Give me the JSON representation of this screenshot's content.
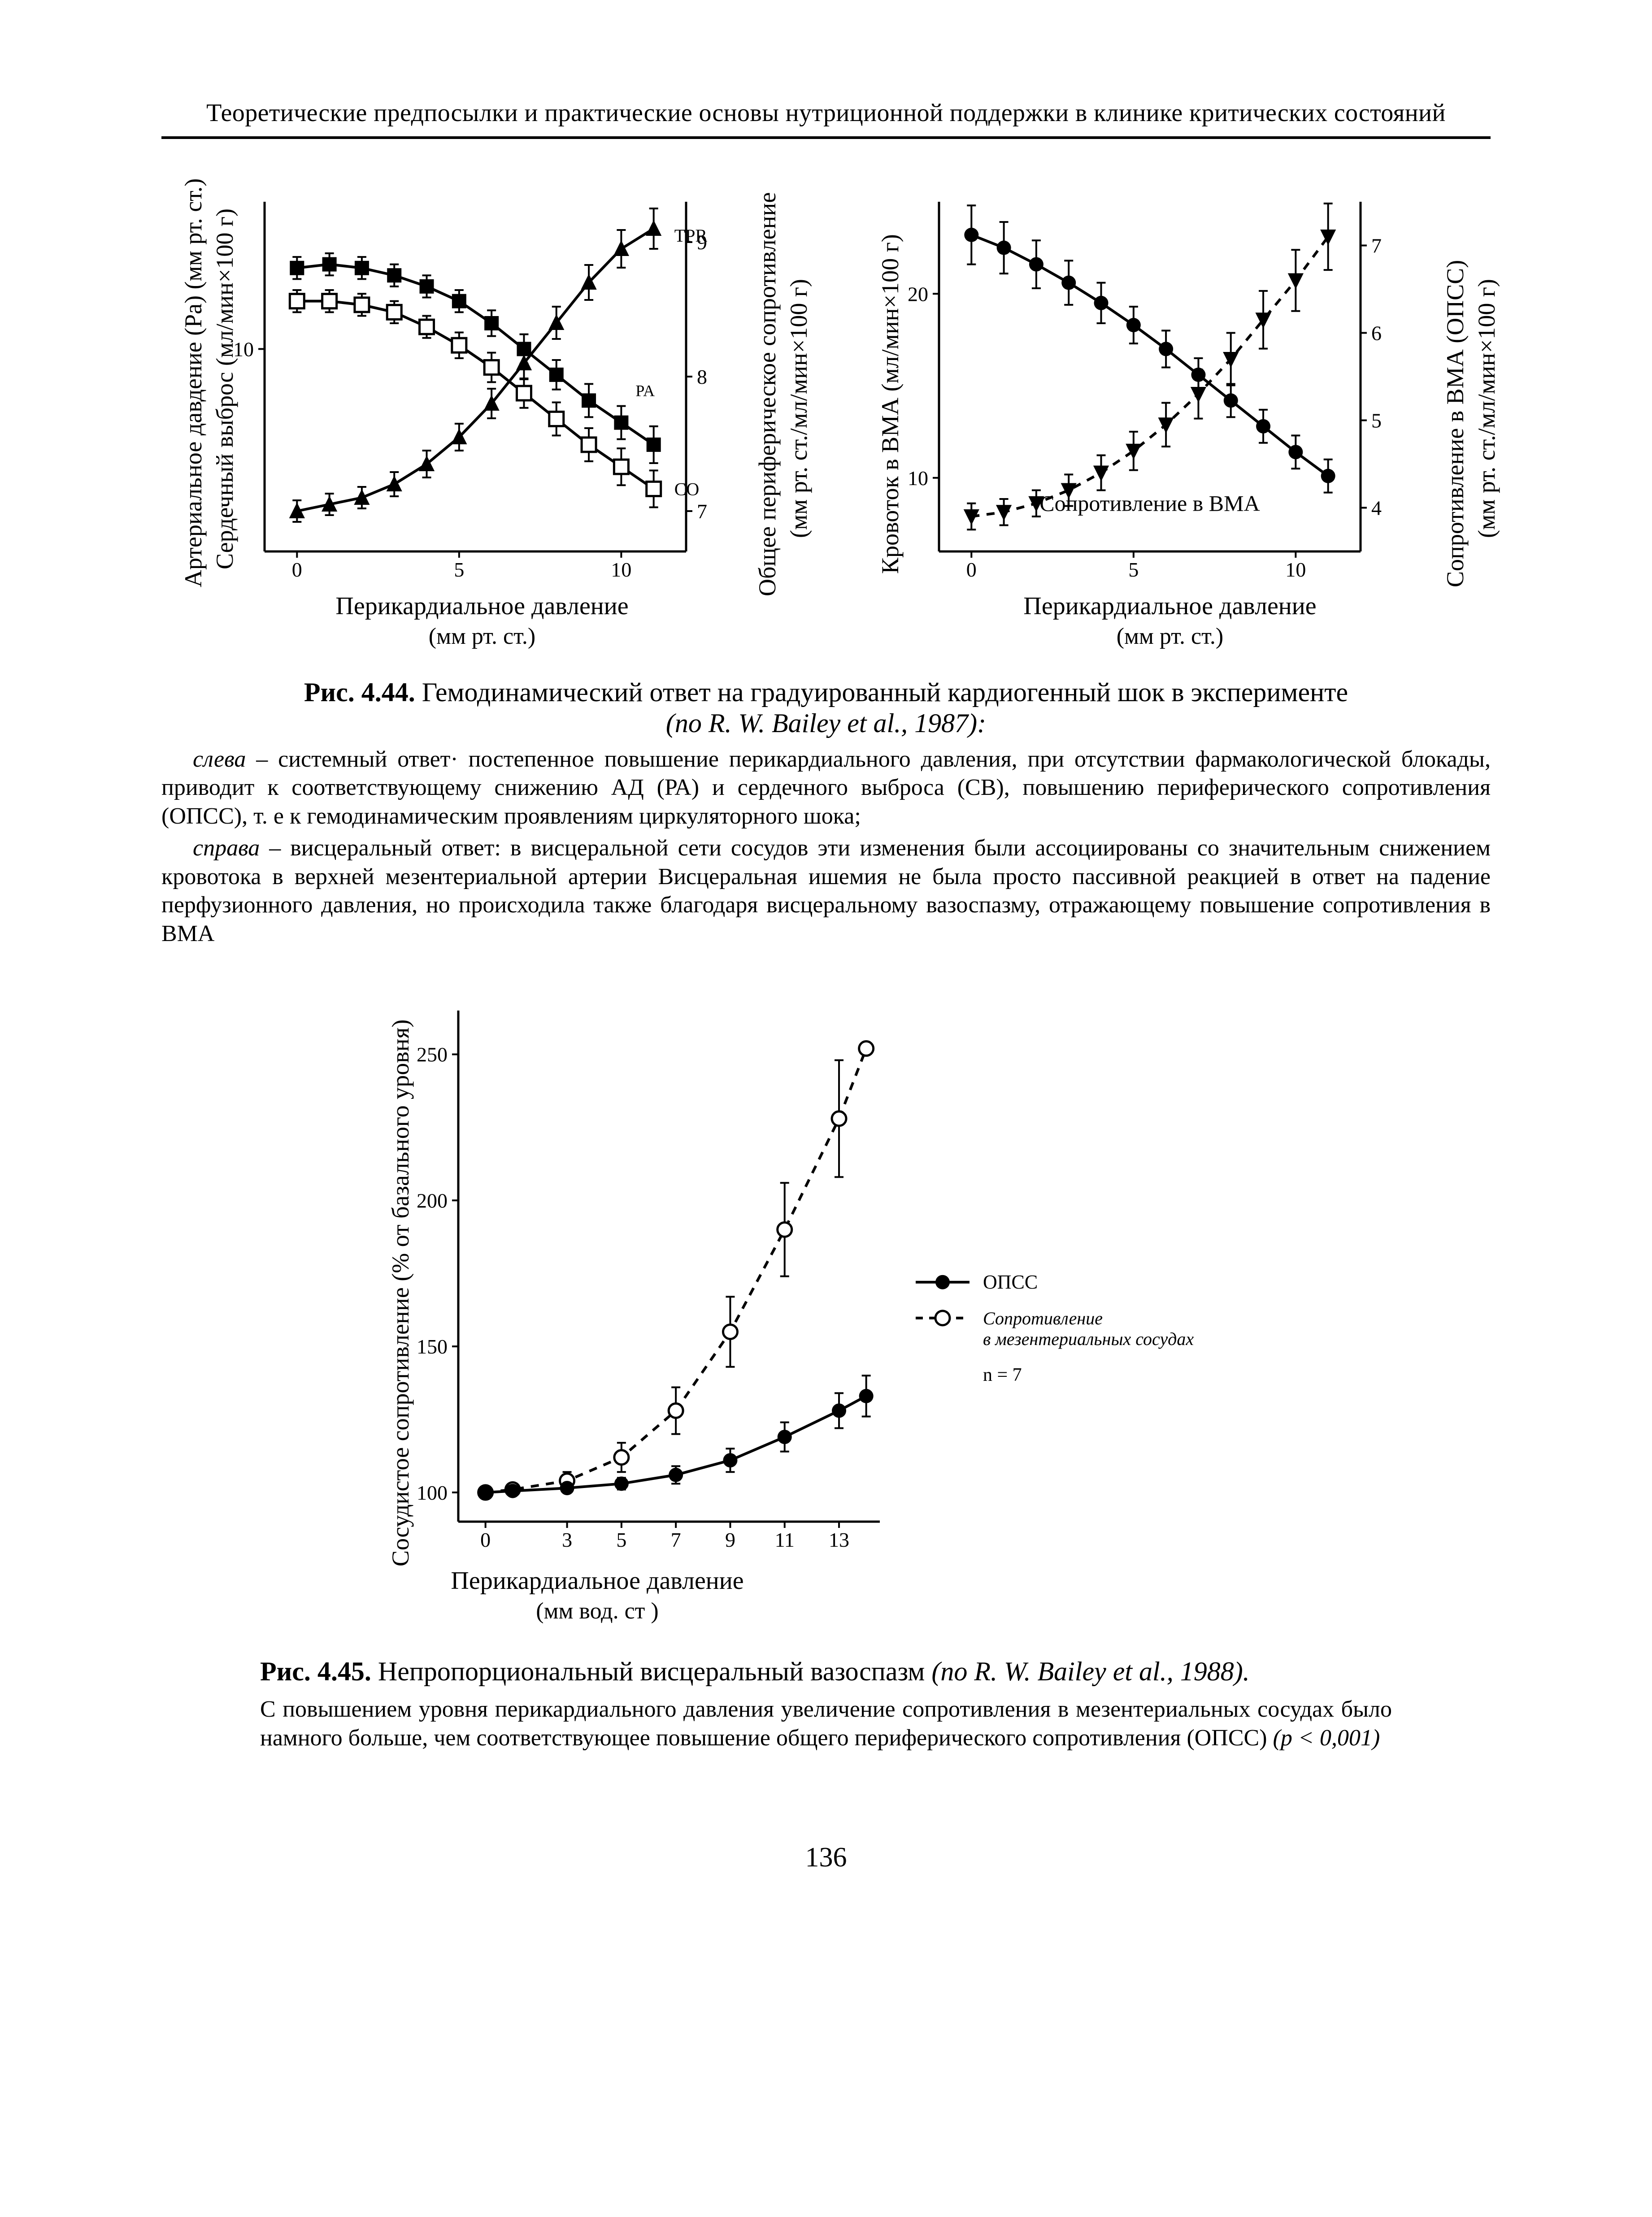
{
  "page": {
    "running_head": "Теоретические предпосылки и практические основы нутриционной поддержки в клинике критических состояний",
    "number": "136"
  },
  "fig444": {
    "title_bold": "Рис. 4.44.",
    "title_rest": " Гемодинамический ответ на градуированный кардиогенный шок в эксперименте",
    "title_em": "(по R. W. Bailey et al., 1987):",
    "para1_lead": "слева",
    "para1": " – системный ответ· постепенное повышение перикардиального давления, при отсутствии фармакологической блокады, приводит к соответствующему снижению АД (РА) и сердечного выброса (СВ), повышению периферического сопротивления (ОПСС), т. е  к гемодинамическим проявлениям циркуляторного шока;",
    "para2_lead": "справа",
    "para2": " – висцеральный ответ: в висцеральной сети сосудов эти изменения были ассоциированы со значительным снижением кровотока в верхней мезентериальной артерии  Висцеральная ишемия не была просто пассивной реакцией в ответ на падение перфузионного давления, но происходила также благодаря висцеральному вазоспазму, отражающему повышение сопротивления в ВМА",
    "left": {
      "y_left_1": "Артериальное давдение (Ра) (мм рт. ст.)",
      "y_left_2": "Сердечный выброс (мл/мин×100 г)",
      "y_right_1": "Общее периферическое сопротивление",
      "y_right_2": "(мм рт. ст./мл/мин×100 г)",
      "x_title": "Перикардиальное давление",
      "x_sub": "(мм рт. ст.)",
      "plot": {
        "xlim": [
          -1,
          12
        ],
        "ylim_l": [
          4.5,
          14
        ],
        "ylim_r": [
          6.7,
          9.3
        ],
        "xticks": [
          0,
          5,
          10
        ],
        "yticks_l": [
          10
        ],
        "yticks_r": [
          7,
          8,
          9
        ],
        "tick_font": 46,
        "axis_w": 5,
        "ann_tpr": "TPR",
        "ann_pa": "PA",
        "ann_co": "CO",
        "series": {
          "Pa": {
            "marker": "fsq",
            "x": [
              0,
              1,
              2,
              3,
              4,
              5,
              6,
              7,
              8,
              9,
              10,
              11
            ],
            "y": [
              12.2,
              12.3,
              12.2,
              12.0,
              11.7,
              11.3,
              10.7,
              10.0,
              9.3,
              8.6,
              8.0,
              7.4
            ],
            "err": [
              0.3,
              0.3,
              0.3,
              0.3,
              0.3,
              0.3,
              0.35,
              0.4,
              0.4,
              0.45,
              0.45,
              0.5
            ]
          },
          "CO": {
            "marker": "osq",
            "x": [
              0,
              1,
              2,
              3,
              4,
              5,
              6,
              7,
              8,
              9,
              10,
              11
            ],
            "y": [
              11.3,
              11.3,
              11.2,
              11.0,
              10.6,
              10.1,
              9.5,
              8.8,
              8.1,
              7.4,
              6.8,
              6.2
            ],
            "err": [
              0.3,
              0.3,
              0.3,
              0.3,
              0.3,
              0.35,
              0.4,
              0.4,
              0.45,
              0.45,
              0.5,
              0.5
            ]
          },
          "TPR": {
            "marker": "ftri",
            "x": [
              0,
              1,
              2,
              3,
              4,
              5,
              6,
              7,
              8,
              9,
              10,
              11
            ],
            "y": [
              7.0,
              7.05,
              7.1,
              7.2,
              7.35,
              7.55,
              7.8,
              8.1,
              8.4,
              8.7,
              8.95,
              9.1
            ],
            "err": [
              0.08,
              0.08,
              0.08,
              0.09,
              0.1,
              0.1,
              0.11,
              0.12,
              0.12,
              0.13,
              0.14,
              0.15
            ],
            "right": true
          }
        }
      }
    },
    "right": {
      "y_left": "Кровоток в ВМА (мл/мин×100 г)",
      "y_right_1": "Сопротивление в ВМА (ОПСС)",
      "y_right_2": "(мм рт. ст./мл/мин×100 г)",
      "x_title": "Перикардиальное давление",
      "x_sub": "(мм рт. ст.)",
      "inside_label": "Сопротивление в ВМА",
      "plot": {
        "xlim": [
          -1,
          12
        ],
        "ylim_l": [
          6,
          25
        ],
        "ylim_r": [
          3.5,
          7.5
        ],
        "xticks": [
          0,
          5,
          10
        ],
        "yticks_l": [
          10,
          20
        ],
        "yticks_r": [
          4,
          5,
          6,
          7
        ],
        "tick_font": 46,
        "axis_w": 5,
        "series": {
          "flow": {
            "marker": "fcirc",
            "dash": false,
            "x": [
              0,
              1,
              2,
              3,
              4,
              5,
              6,
              7,
              8,
              9,
              10,
              11
            ],
            "y": [
              23.2,
              22.5,
              21.6,
              20.6,
              19.5,
              18.3,
              17.0,
              15.6,
              14.2,
              12.8,
              11.4,
              10.1
            ],
            "err": [
              1.6,
              1.4,
              1.3,
              1.2,
              1.1,
              1.0,
              1.0,
              0.9,
              0.9,
              0.9,
              0.9,
              0.9
            ]
          },
          "res": {
            "marker": "ftriD",
            "dash": true,
            "x": [
              0,
              1,
              2,
              3,
              4,
              5,
              6,
              7,
              8,
              9,
              10,
              11
            ],
            "y": [
              3.9,
              3.95,
              4.05,
              4.2,
              4.4,
              4.65,
              4.95,
              5.3,
              5.7,
              6.15,
              6.6,
              7.1
            ],
            "err": [
              0.15,
              0.15,
              0.15,
              0.18,
              0.2,
              0.22,
              0.25,
              0.28,
              0.3,
              0.33,
              0.35,
              0.38
            ],
            "right": true
          }
        }
      }
    }
  },
  "fig445": {
    "title_bold": "Рис. 4.45.",
    "title_rest": " Непропорциональный висцеральный вазоспазм ",
    "title_em": "(по R. W. Bailey et al., 1988).",
    "para": "С повышением уровня перикардиального давления увеличение сопротивления в мезентериальных сосудах было намного больше, чем соответствующее повышение общего периферического сопротивления (ОПСС) ",
    "para_em": "(p < 0,001)",
    "y_label": "Сосудистое сопротивление (% от базального уровня)",
    "x_title": "Перикардиальное давление",
    "x_sub": "(мм вод. ст )",
    "legend1": "ОПСС",
    "legend2": "Сопротивление",
    "legend2b": "в мезентериальных сосудах",
    "legend_n": "n = 7",
    "plot": {
      "xlim": [
        -1,
        14.5
      ],
      "ylim": [
        90,
        265
      ],
      "xticks": [
        0,
        3,
        5,
        7,
        9,
        11,
        13
      ],
      "yticks": [
        100,
        150,
        200,
        250
      ],
      "tick_font": 46,
      "axis_w": 5,
      "series": {
        "opss": {
          "marker": "fcirc",
          "dash": false,
          "x": [
            0,
            1,
            3,
            5,
            7,
            9,
            11,
            13,
            14
          ],
          "y": [
            100,
            100.5,
            101.5,
            103,
            106,
            111,
            119,
            128,
            133
          ],
          "err": [
            0,
            1,
            1.5,
            2,
            3,
            4,
            5,
            6,
            7
          ]
        },
        "mes": {
          "marker": "ocirc",
          "dash": true,
          "x": [
            0,
            1,
            3,
            5,
            7,
            9,
            11,
            13,
            14
          ],
          "y": [
            100,
            101,
            104,
            112,
            128,
            155,
            190,
            228,
            252
          ],
          "err": [
            0,
            2,
            3,
            5,
            8,
            12,
            16,
            20,
            0
          ]
        }
      }
    }
  },
  "style": {
    "ink": "#000000",
    "bg": "#ffffff",
    "marker_size": 16,
    "line_w": 6,
    "err_w": 4
  }
}
